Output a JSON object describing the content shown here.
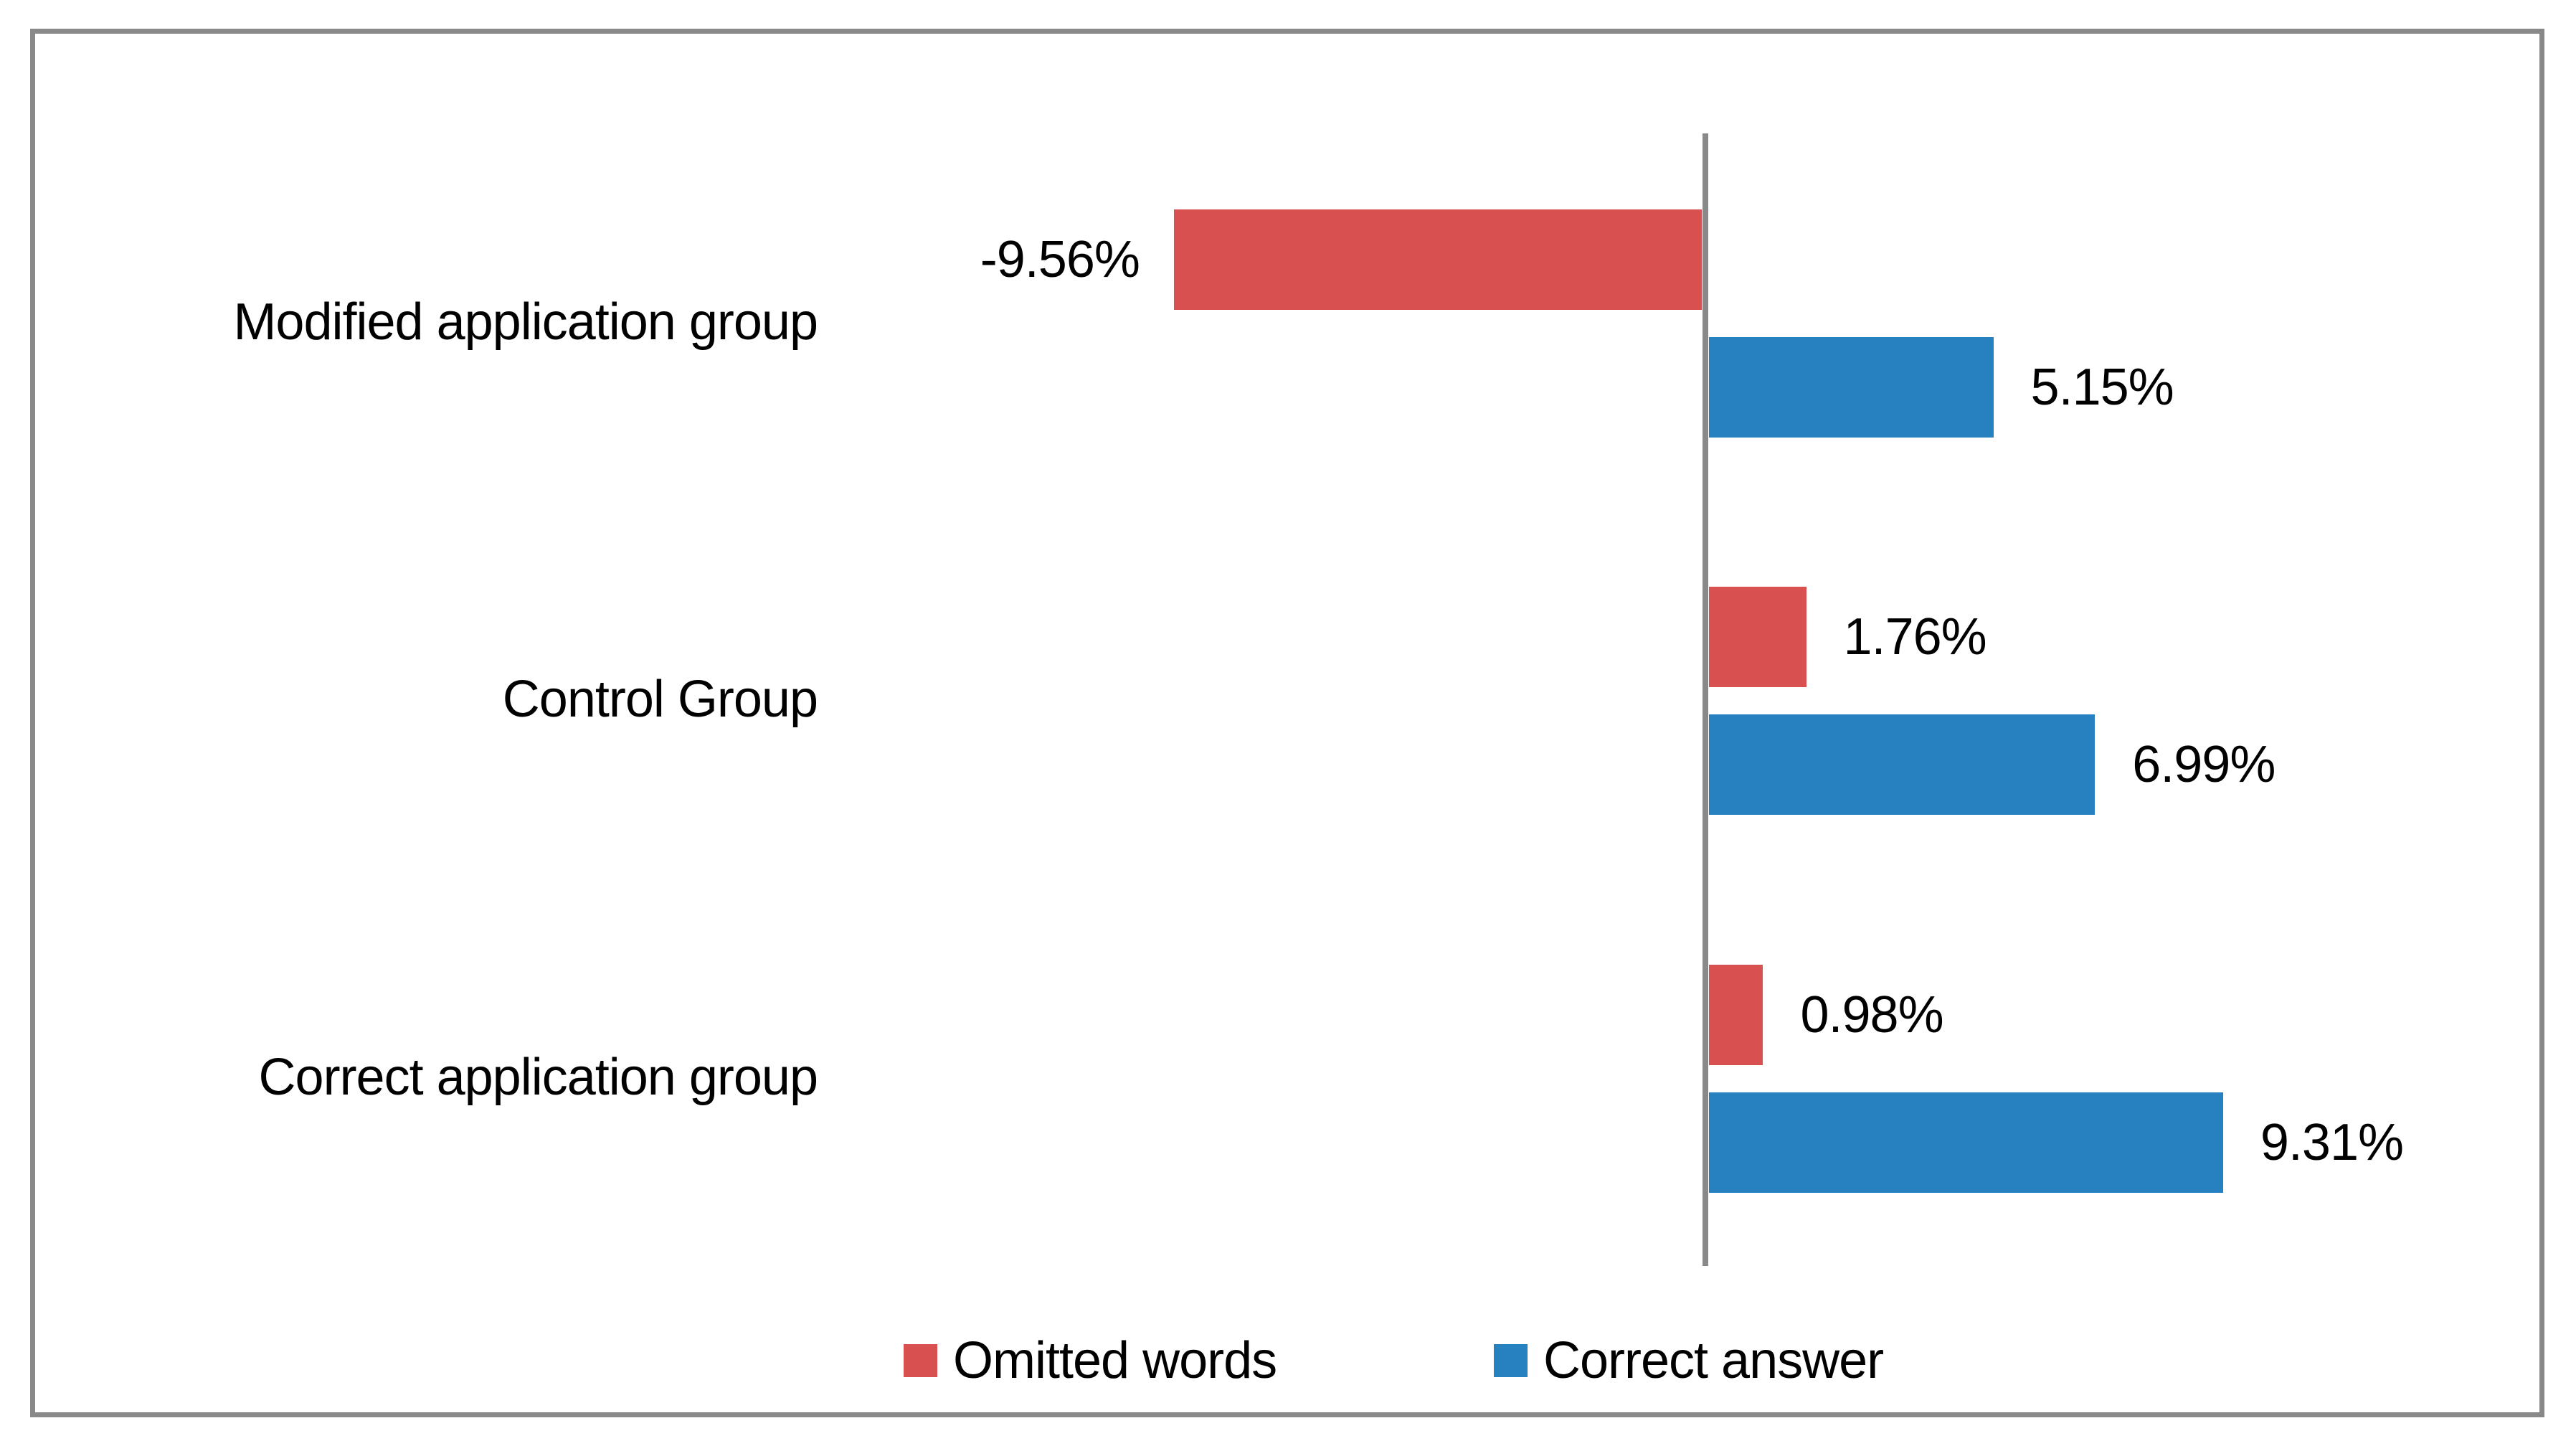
{
  "chart_data": {
    "type": "bar",
    "orientation": "horizontal",
    "title": "",
    "xlabel": "",
    "ylabel": "",
    "grid": false,
    "legend_position": "bottom",
    "xlim": [
      -15.4,
      15.1
    ],
    "axis_color": "#898989",
    "frame_border_color": "#898989",
    "text_color": "#000000",
    "categories": [
      "Modified application group",
      "Control Group",
      "Correct application group"
    ],
    "series": [
      {
        "name": "Omitted words",
        "color": "#D95050",
        "values": [
          -9.56,
          1.76,
          0.98
        ],
        "labels": [
          "-9.56%",
          "1.76%",
          "0.98%"
        ]
      },
      {
        "name": "Correct answer",
        "color": "#2781C1",
        "values": [
          5.15,
          6.99,
          9.31
        ],
        "labels": [
          "5.15%",
          "6.99%",
          "9.31%"
        ]
      }
    ]
  }
}
